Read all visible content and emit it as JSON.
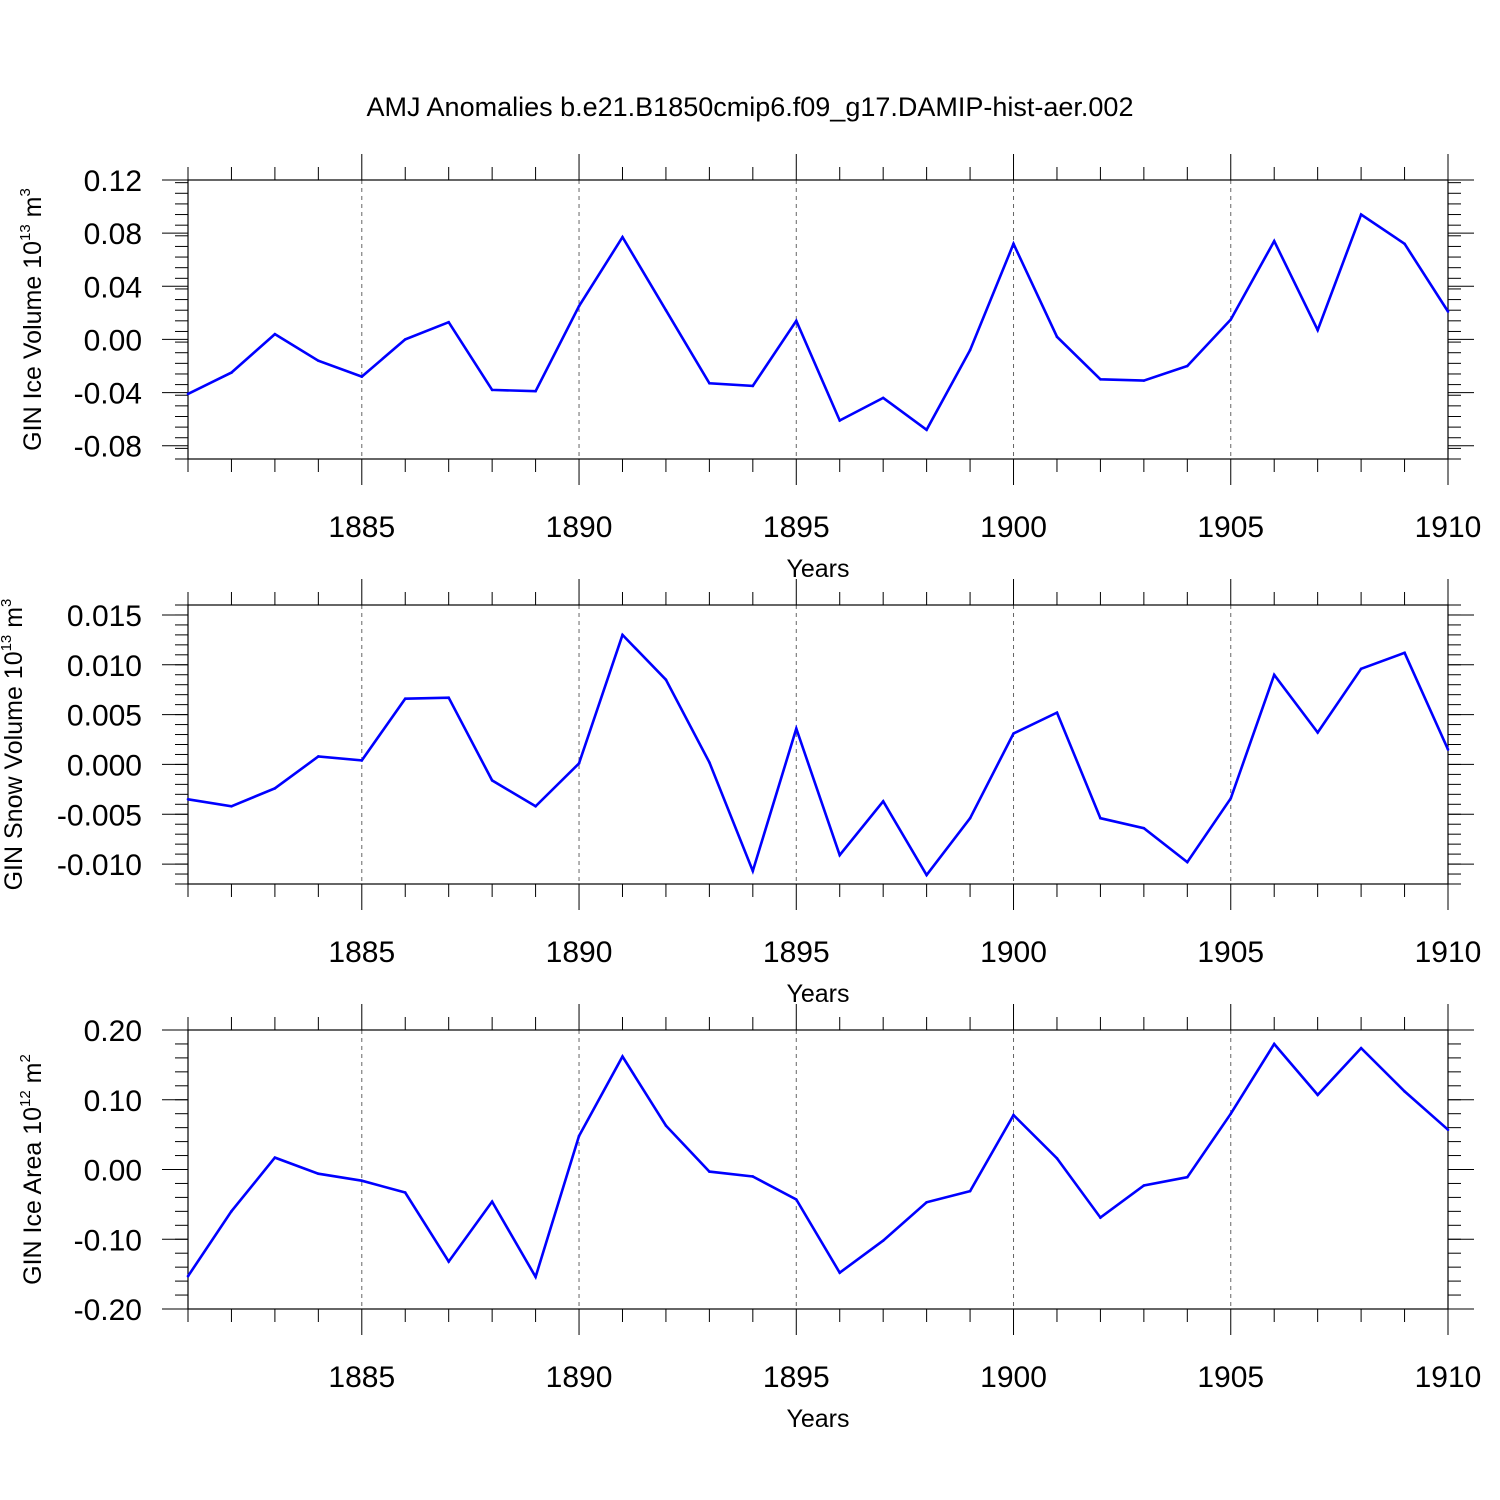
{
  "title": "AMJ Anomalies b.e21.B1850cmip6.f09_g17.DAMIP-hist-aer.002",
  "line_color": "#0000ff",
  "chart_data": [
    {
      "type": "line",
      "ylabel": {
        "text": "GIN Ice Volume 10",
        "sup": "13",
        "unit": " m",
        "unit_sup": "3"
      },
      "xlabel": "Years",
      "xlim": [
        1881,
        1910
      ],
      "ylim": [
        -0.09,
        0.12
      ],
      "xticks": [
        1885,
        1890,
        1895,
        1900,
        1905,
        1910
      ],
      "yticks": [
        -0.08,
        -0.04,
        0.0,
        0.04,
        0.08,
        0.12
      ],
      "ytick_labels": [
        "-0.08",
        "-0.04",
        "0.00",
        "0.04",
        "0.08",
        "0.12"
      ],
      "yminor_step": 0.008,
      "grid": "dashed vertical at major x ticks",
      "x": [
        1881,
        1882,
        1883,
        1884,
        1885,
        1886,
        1887,
        1888,
        1889,
        1890,
        1891,
        1892,
        1893,
        1894,
        1895,
        1896,
        1897,
        1898,
        1899,
        1900,
        1901,
        1902,
        1903,
        1904,
        1905,
        1906,
        1907,
        1908,
        1909,
        1910
      ],
      "values": [
        -0.041,
        -0.025,
        0.004,
        -0.016,
        -0.028,
        0.0,
        0.013,
        -0.038,
        -0.039,
        0.025,
        0.077,
        0.022,
        -0.033,
        -0.035,
        0.014,
        -0.061,
        -0.044,
        -0.068,
        -0.008,
        0.072,
        0.002,
        -0.03,
        -0.031,
        -0.02,
        0.015,
        0.074,
        0.007,
        0.094,
        0.072,
        0.021
      ]
    },
    {
      "type": "line",
      "ylabel": {
        "text": "GIN Snow Volume 10",
        "sup": "13",
        "unit": " m",
        "unit_sup": "3"
      },
      "xlabel": "Years",
      "xlim": [
        1881,
        1910
      ],
      "ylim": [
        -0.012,
        0.016
      ],
      "xticks": [
        1885,
        1890,
        1895,
        1900,
        1905,
        1910
      ],
      "yticks": [
        -0.01,
        -0.005,
        0.0,
        0.005,
        0.01,
        0.015
      ],
      "ytick_labels": [
        "-0.010",
        "-0.005",
        "0.000",
        "0.005",
        "0.010",
        "0.015"
      ],
      "yminor_step": 0.001,
      "grid": "dashed vertical at major x ticks",
      "x": [
        1881,
        1882,
        1883,
        1884,
        1885,
        1886,
        1887,
        1888,
        1889,
        1890,
        1891,
        1892,
        1893,
        1894,
        1895,
        1896,
        1897,
        1898,
        1899,
        1900,
        1901,
        1902,
        1903,
        1904,
        1905,
        1906,
        1907,
        1908,
        1909,
        1910
      ],
      "values": [
        -0.0035,
        -0.0042,
        -0.0024,
        0.0008,
        0.0004,
        0.0066,
        0.0067,
        -0.0016,
        -0.0042,
        0.0001,
        0.013,
        0.0085,
        0.0002,
        -0.0107,
        0.0036,
        -0.0091,
        -0.0037,
        -0.0111,
        -0.0054,
        0.0031,
        0.0052,
        -0.0054,
        -0.0064,
        -0.0098,
        -0.0034,
        0.009,
        0.0032,
        0.0096,
        0.0112,
        0.0015
      ]
    },
    {
      "type": "line",
      "ylabel": {
        "text": "GIN Ice Area 10",
        "sup": "12",
        "unit": " m",
        "unit_sup": "2"
      },
      "xlabel": "Years",
      "xlim": [
        1881,
        1910
      ],
      "ylim": [
        -0.2,
        0.2
      ],
      "xticks": [
        1885,
        1890,
        1895,
        1900,
        1905,
        1910
      ],
      "yticks": [
        -0.2,
        -0.1,
        0.0,
        0.1,
        0.2
      ],
      "ytick_labels": [
        "-0.20",
        "-0.10",
        "0.00",
        "0.10",
        "0.20"
      ],
      "yminor_step": 0.02,
      "grid": "dashed vertical at major x ticks",
      "x": [
        1881,
        1882,
        1883,
        1884,
        1885,
        1886,
        1887,
        1888,
        1889,
        1890,
        1891,
        1892,
        1893,
        1894,
        1895,
        1896,
        1897,
        1898,
        1899,
        1900,
        1901,
        1902,
        1903,
        1904,
        1905,
        1906,
        1907,
        1908,
        1909,
        1910
      ],
      "values": [
        -0.153,
        -0.06,
        0.017,
        -0.006,
        -0.016,
        -0.033,
        -0.132,
        -0.046,
        -0.154,
        0.048,
        0.162,
        0.063,
        -0.003,
        -0.01,
        -0.043,
        -0.148,
        -0.102,
        -0.047,
        -0.031,
        0.078,
        0.016,
        -0.069,
        -0.023,
        -0.011,
        0.08,
        0.18,
        0.107,
        0.174,
        0.112,
        0.057
      ]
    }
  ]
}
